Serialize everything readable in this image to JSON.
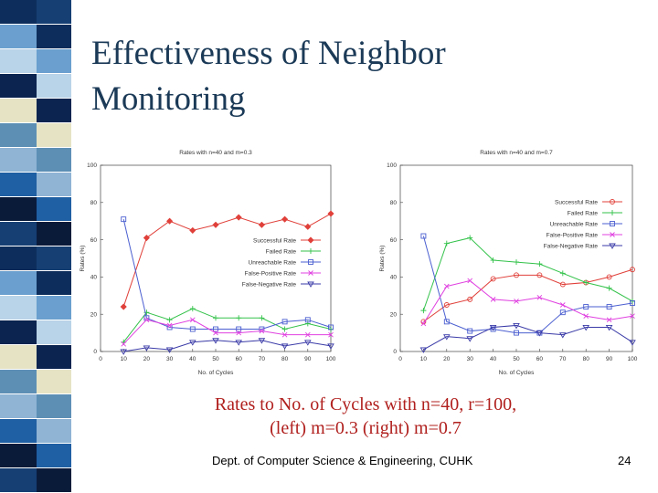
{
  "slide": {
    "title_line1": "Effectiveness of Neighbor",
    "title_line2": "Monitoring",
    "caption_line1": "Rates to No. of Cycles with n=40, r=100,",
    "caption_line2": "(left) m=0.3 (right) m=0.7",
    "footer": "Dept. of Computer Science & Engineering, CUHK",
    "page_number": "24"
  },
  "sidebar": {
    "colors": [
      "#0d2e5c",
      "#1f5fa3",
      "#e6e3c5",
      "#6a9fcf",
      "#0a1b3a",
      "#5d8fb5",
      "#b9d3e8",
      "#163f73",
      "#8fb4d4",
      "#0b2450"
    ]
  },
  "chart_data": [
    {
      "type": "line",
      "title": "Rates with n=40 and m=0.3",
      "xlabel": "No. of Cycles",
      "ylabel": "Rates (%)",
      "xlim": [
        0,
        100
      ],
      "ylim": [
        0,
        100
      ],
      "x_ticks": [
        0,
        10,
        20,
        30,
        40,
        50,
        60,
        70,
        80,
        90,
        100
      ],
      "y_ticks": [
        0,
        20,
        40,
        60,
        80,
        100
      ],
      "grid": false,
      "legend_position": "center-right",
      "x": [
        10,
        20,
        30,
        40,
        50,
        60,
        70,
        80,
        90,
        100
      ],
      "series": [
        {
          "name": "Successful Rate",
          "color": "#e0403a",
          "marker": "diamond",
          "values": [
            24,
            61,
            70,
            65,
            68,
            72,
            68,
            71,
            67,
            74
          ]
        },
        {
          "name": "Failed Rate",
          "color": "#33c24a",
          "marker": "plus",
          "values": [
            5,
            21,
            17,
            23,
            18,
            18,
            18,
            12,
            15,
            12
          ]
        },
        {
          "name": "Unreachable Rate",
          "color": "#4b5fd0",
          "marker": "square",
          "values": [
            71,
            18,
            13,
            12,
            12,
            12,
            12,
            16,
            17,
            13
          ]
        },
        {
          "name": "False-Positive Rate",
          "color": "#e040e0",
          "marker": "x",
          "values": [
            4,
            17,
            14,
            17,
            10,
            10,
            11,
            9,
            9,
            9
          ]
        },
        {
          "name": "False-Negative Rate",
          "color": "#3a3aa8",
          "marker": "triangle",
          "values": [
            0,
            2,
            1,
            5,
            6,
            5,
            6,
            3,
            5,
            3
          ]
        }
      ]
    },
    {
      "type": "line",
      "title": "Rates with n=40 and m=0.7",
      "xlabel": "No. of Cycles",
      "ylabel": "Rates (%)",
      "xlim": [
        0,
        100
      ],
      "ylim": [
        0,
        100
      ],
      "x_ticks": [
        0,
        10,
        20,
        30,
        40,
        50,
        60,
        70,
        80,
        90,
        100
      ],
      "y_ticks": [
        0,
        20,
        40,
        60,
        80,
        100
      ],
      "grid": false,
      "legend_position": "top-right",
      "x": [
        10,
        20,
        30,
        40,
        50,
        60,
        70,
        80,
        90,
        100
      ],
      "series": [
        {
          "name": "Successful Rate",
          "color": "#e0403a",
          "marker": "circle",
          "values": [
            16,
            25,
            28,
            39,
            41,
            41,
            36,
            37,
            40,
            44
          ]
        },
        {
          "name": "Failed Rate",
          "color": "#33c24a",
          "marker": "plus",
          "values": [
            22,
            58,
            61,
            49,
            48,
            47,
            42,
            37,
            34,
            27
          ]
        },
        {
          "name": "Unreachable Rate",
          "color": "#4b5fd0",
          "marker": "square",
          "values": [
            62,
            16,
            11,
            12,
            10,
            10,
            21,
            24,
            24,
            26
          ]
        },
        {
          "name": "False-Positive Rate",
          "color": "#e040e0",
          "marker": "x",
          "values": [
            15,
            35,
            38,
            28,
            27,
            29,
            25,
            19,
            17,
            19
          ]
        },
        {
          "name": "False-Negative Rate",
          "color": "#3a3aa8",
          "marker": "triangle",
          "values": [
            1,
            8,
            7,
            13,
            14,
            10,
            9,
            13,
            13,
            5
          ]
        }
      ]
    }
  ]
}
